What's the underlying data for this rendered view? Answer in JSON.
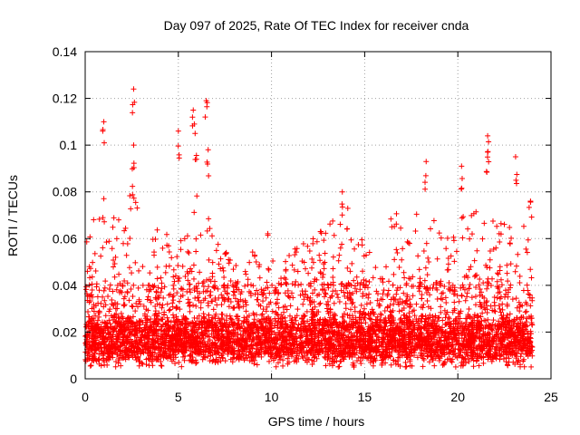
{
  "chart_data": {
    "type": "scatter",
    "title": "Day 097 of 2025, Rate Of TEC Index for receiver cnda",
    "xlabel": "GPS time / hours",
    "ylabel": "ROTI / TECUs",
    "xlim": [
      0,
      25
    ],
    "ylim": [
      0,
      0.14
    ],
    "xticks": [
      0,
      5,
      10,
      15,
      20,
      25
    ],
    "xtick_labels": [
      "0",
      "5",
      "10",
      "15",
      "20",
      "25"
    ],
    "yticks": [
      0,
      0.02,
      0.04,
      0.06,
      0.08,
      0.1,
      0.12,
      0.14
    ],
    "ytick_labels": [
      "0",
      "0.02",
      "0.04",
      "0.06",
      "0.08",
      "0.1",
      "0.12",
      "0.14"
    ],
    "grid": true,
    "marker": "+",
    "color": "#ff0000",
    "series": [
      {
        "name": "ROTI",
        "data_range_hours": [
          0,
          24
        ],
        "notable_peaks": [
          {
            "x": 1.0,
            "y": 0.11
          },
          {
            "x": 2.6,
            "y": 0.124
          },
          {
            "x": 2.6,
            "y": 0.1
          },
          {
            "x": 5.0,
            "y": 0.106
          },
          {
            "x": 5.8,
            "y": 0.115
          },
          {
            "x": 5.9,
            "y": 0.105
          },
          {
            "x": 6.5,
            "y": 0.119
          },
          {
            "x": 6.6,
            "y": 0.098
          },
          {
            "x": 13.8,
            "y": 0.08
          },
          {
            "x": 18.3,
            "y": 0.093
          },
          {
            "x": 20.2,
            "y": 0.091
          },
          {
            "x": 21.6,
            "y": 0.104
          },
          {
            "x": 21.6,
            "y": 0.097
          },
          {
            "x": 23.1,
            "y": 0.095
          },
          {
            "x": 23.9,
            "y": 0.076
          }
        ],
        "typical_band": [
          0.005,
          0.04
        ],
        "dense_core": [
          0.01,
          0.025
        ],
        "upper_envelope": [
          {
            "x": 0,
            "y": 0.06
          },
          {
            "x": 1,
            "y": 0.08
          },
          {
            "x": 2,
            "y": 0.065
          },
          {
            "x": 2.5,
            "y": 0.085
          },
          {
            "x": 3,
            "y": 0.065
          },
          {
            "x": 4,
            "y": 0.075
          },
          {
            "x": 5,
            "y": 0.055
          },
          {
            "x": 6,
            "y": 0.085
          },
          {
            "x": 7,
            "y": 0.06
          },
          {
            "x": 8,
            "y": 0.05
          },
          {
            "x": 9,
            "y": 0.058
          },
          {
            "x": 10,
            "y": 0.065
          },
          {
            "x": 11,
            "y": 0.055
          },
          {
            "x": 12,
            "y": 0.06
          },
          {
            "x": 13,
            "y": 0.065
          },
          {
            "x": 14,
            "y": 0.075
          },
          {
            "x": 15,
            "y": 0.062
          },
          {
            "x": 16,
            "y": 0.072
          },
          {
            "x": 17,
            "y": 0.075
          },
          {
            "x": 18,
            "y": 0.072
          },
          {
            "x": 19,
            "y": 0.078
          },
          {
            "x": 20,
            "y": 0.07
          },
          {
            "x": 21,
            "y": 0.078
          },
          {
            "x": 22,
            "y": 0.07
          },
          {
            "x": 23,
            "y": 0.065
          },
          {
            "x": 24,
            "y": 0.07
          }
        ]
      }
    ]
  }
}
